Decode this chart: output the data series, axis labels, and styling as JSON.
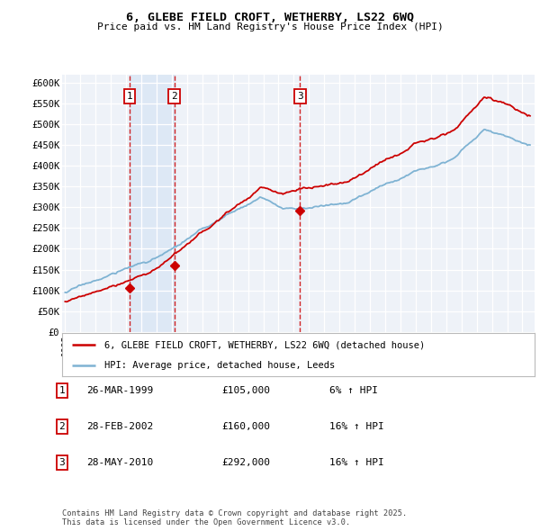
{
  "title": "6, GLEBE FIELD CROFT, WETHERBY, LS22 6WQ",
  "subtitle": "Price paid vs. HM Land Registry's House Price Index (HPI)",
  "legend_line1": "6, GLEBE FIELD CROFT, WETHERBY, LS22 6WQ (detached house)",
  "legend_line2": "HPI: Average price, detached house, Leeds",
  "sale_color": "#cc0000",
  "hpi_color": "#7fb3d3",
  "background_color": "#ffffff",
  "plot_bg_color": "#eef2f8",
  "grid_color": "#ffffff",
  "vline_color": "#cc0000",
  "vshade_color": "#dde8f5",
  "ylim": [
    0,
    620000
  ],
  "yticks": [
    0,
    50000,
    100000,
    150000,
    200000,
    250000,
    300000,
    350000,
    400000,
    450000,
    500000,
    550000,
    600000
  ],
  "ytick_labels": [
    "£0",
    "£50K",
    "£100K",
    "£150K",
    "£200K",
    "£250K",
    "£300K",
    "£350K",
    "£400K",
    "£450K",
    "£500K",
    "£550K",
    "£600K"
  ],
  "vline_dates": [
    1999.23,
    2002.16,
    2010.41
  ],
  "footer": "Contains HM Land Registry data © Crown copyright and database right 2025.\nThis data is licensed under the Open Government Licence v3.0.",
  "table": [
    {
      "num": "1",
      "date": "26-MAR-1999",
      "price": "£105,000",
      "change": "6% ↑ HPI"
    },
    {
      "num": "2",
      "date": "28-FEB-2002",
      "price": "£160,000",
      "change": "16% ↑ HPI"
    },
    {
      "num": "3",
      "date": "28-MAY-2010",
      "price": "£292,000",
      "change": "16% ↑ HPI"
    }
  ]
}
